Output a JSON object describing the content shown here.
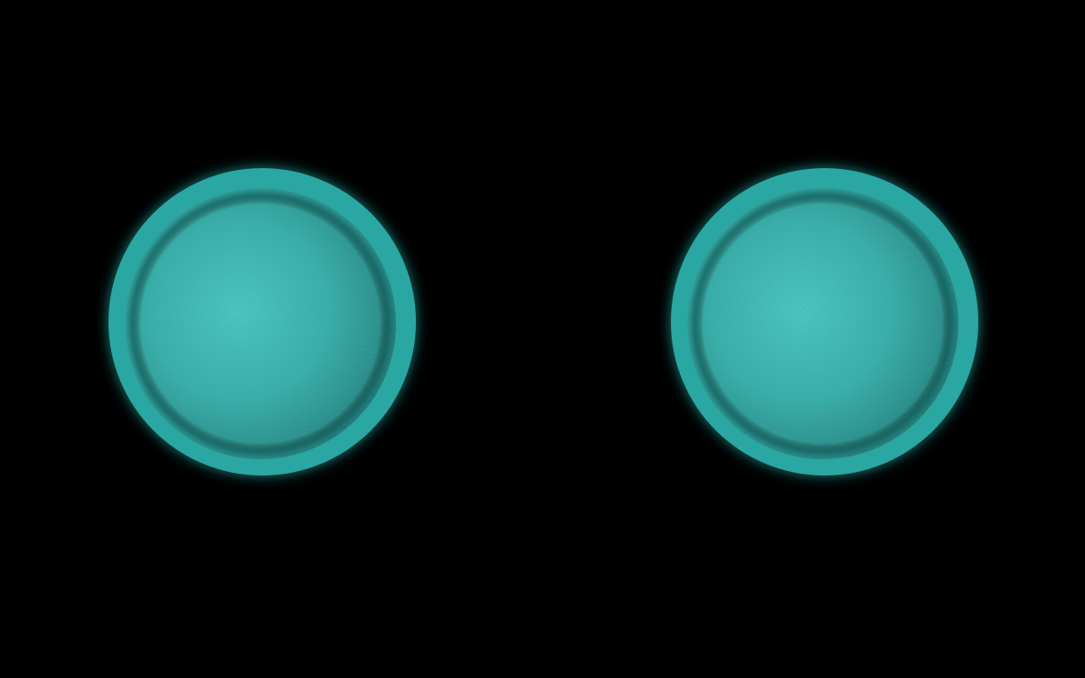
{
  "scene": {
    "background_color": "#000000",
    "accent_color": "#2fbfb8",
    "rim_color": "#0f6a68",
    "highlight_color": "#5de0d8",
    "objects": [
      {
        "name": "left-planet",
        "kind": "textured teal disc with darker rim"
      },
      {
        "name": "right-planet",
        "kind": "textured teal disc with darker rim"
      }
    ]
  }
}
